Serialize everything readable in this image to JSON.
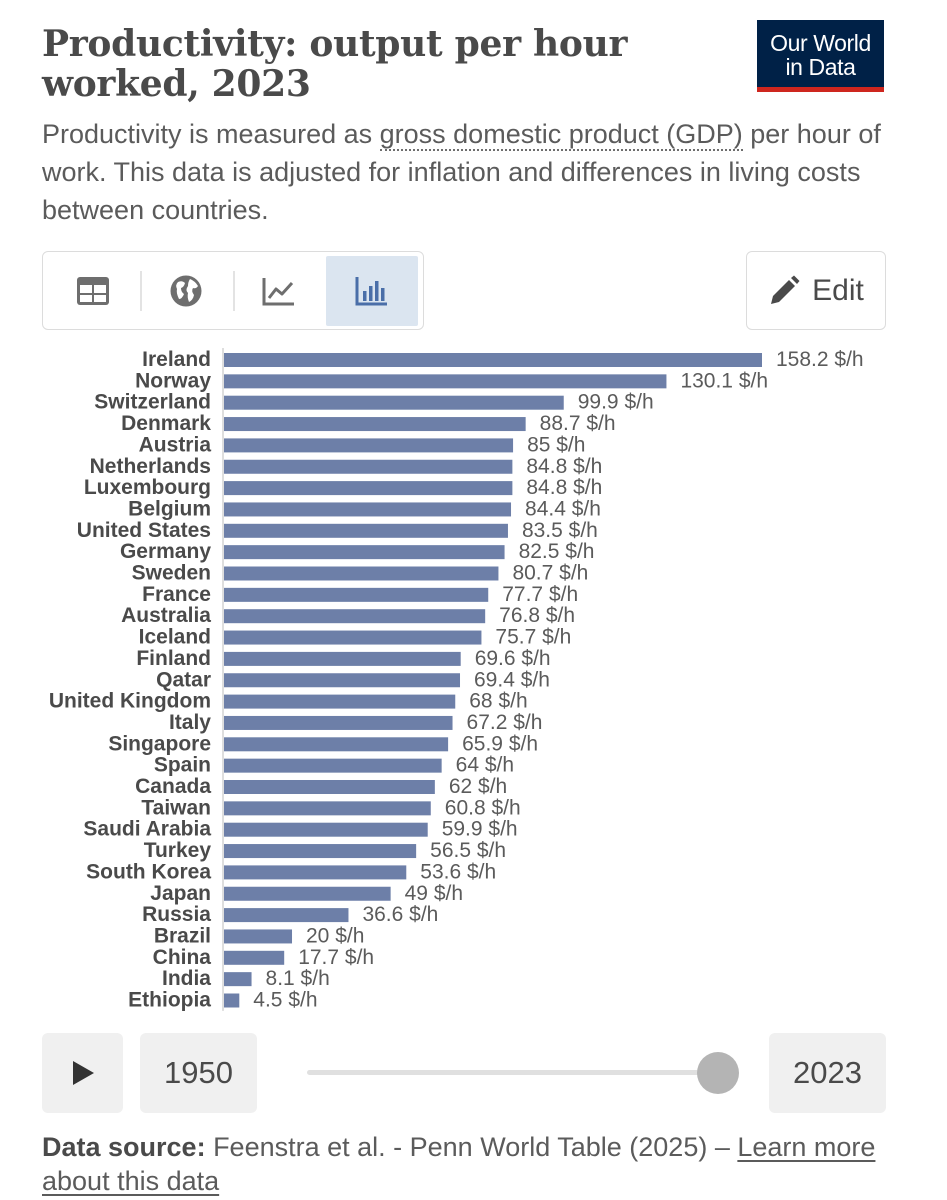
{
  "header": {
    "title": "Productivity: output per hour worked, 2023",
    "logo_line1": "Our World",
    "logo_line2": "in Data",
    "subtitle_before": "Productivity is measured as ",
    "subtitle_link": "gross domestic product (GDP)",
    "subtitle_after": " per hour of work. This data is adjusted for inflation and differences in living costs between countries."
  },
  "toolbar": {
    "tabs": [
      {
        "icon": "table-icon",
        "active": false
      },
      {
        "icon": "globe-icon",
        "active": false
      },
      {
        "icon": "line-chart-icon",
        "active": false
      },
      {
        "icon": "bar-chart-icon",
        "active": true
      }
    ],
    "edit_label": "Edit",
    "edit_icon": "pencil-icon"
  },
  "chart_data": {
    "type": "bar",
    "orientation": "horizontal",
    "unit_suffix": " $/h",
    "bar_color": "#6d7fa8",
    "categories": [
      "Ireland",
      "Norway",
      "Switzerland",
      "Denmark",
      "Austria",
      "Netherlands",
      "Luxembourg",
      "Belgium",
      "United States",
      "Germany",
      "Sweden",
      "France",
      "Australia",
      "Iceland",
      "Finland",
      "Qatar",
      "United Kingdom",
      "Italy",
      "Singapore",
      "Spain",
      "Canada",
      "Taiwan",
      "Saudi Arabia",
      "Turkey",
      "South Korea",
      "Japan",
      "Russia",
      "Brazil",
      "China",
      "India",
      "Ethiopia"
    ],
    "values": [
      158.2,
      130.1,
      99.9,
      88.7,
      85,
      84.8,
      84.8,
      84.4,
      83.5,
      82.5,
      80.7,
      77.7,
      76.8,
      75.7,
      69.6,
      69.4,
      68,
      67.2,
      65.9,
      64,
      62,
      60.8,
      59.9,
      56.5,
      53.6,
      49,
      36.6,
      20,
      17.7,
      8.1,
      4.5
    ],
    "value_labels": [
      "158.2 $/h",
      "130.1 $/h",
      "99.9 $/h",
      "88.7 $/h",
      "85 $/h",
      "84.8 $/h",
      "84.8 $/h",
      "84.4 $/h",
      "83.5 $/h",
      "82.5 $/h",
      "80.7 $/h",
      "77.7 $/h",
      "76.8 $/h",
      "75.7 $/h",
      "69.6 $/h",
      "69.4 $/h",
      "68 $/h",
      "67.2 $/h",
      "65.9 $/h",
      "64 $/h",
      "62 $/h",
      "60.8 $/h",
      "59.9 $/h",
      "56.5 $/h",
      "53.6 $/h",
      "49 $/h",
      "36.6 $/h",
      "20 $/h",
      "17.7 $/h",
      "8.1 $/h",
      "4.5 $/h"
    ],
    "xlim": [
      0,
      158.2
    ]
  },
  "timeline": {
    "start_year": "1950",
    "end_year": "2023",
    "position": 1.0
  },
  "footer": {
    "source_label": "Data source:",
    "source_text": " Feenstra et al. - Penn World Table (2025) – ",
    "learn_more": "Learn more about this data"
  }
}
